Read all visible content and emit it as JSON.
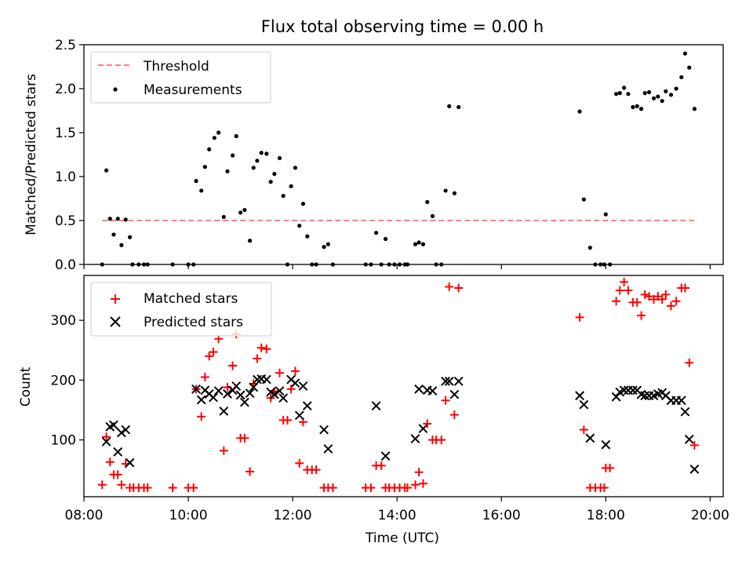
{
  "chart_data": [
    {
      "type": "scatter",
      "title": "Flux total observing time = 0.00 h",
      "ylabel": "Matched/Predicted stars",
      "xlabel": "",
      "xlim": [
        8.0,
        20.25
      ],
      "ylim": [
        0,
        2.5
      ],
      "yticks": [
        0.0,
        0.5,
        1.0,
        1.5,
        2.0,
        2.5
      ],
      "ytick_labels": [
        "0.0",
        "0.5",
        "1.0",
        "1.5",
        "2.0",
        "2.5"
      ],
      "grid": false,
      "legend_position": "top-left",
      "legend": [
        "Threshold",
        "Measurements"
      ],
      "threshold": {
        "name": "Threshold",
        "value": 0.5,
        "x_range": [
          8.35,
          19.7
        ],
        "color": "#ff7f7f",
        "style": "dashed"
      },
      "series": [
        {
          "name": "Measurements",
          "marker": "dot",
          "color": "#000000",
          "points": [
            [
              8.35,
              0.0
            ],
            [
              8.43,
              1.07
            ],
            [
              8.5,
              0.52
            ],
            [
              8.57,
              0.34
            ],
            [
              8.65,
              0.52
            ],
            [
              8.72,
              0.22
            ],
            [
              8.8,
              0.51
            ],
            [
              8.88,
              0.31
            ],
            [
              8.93,
              0.0
            ],
            [
              9.05,
              0.0
            ],
            [
              9.15,
              0.0
            ],
            [
              9.22,
              0.0
            ],
            [
              9.7,
              0.0
            ],
            [
              10.0,
              0.0
            ],
            [
              10.1,
              0.0
            ],
            [
              10.15,
              0.95
            ],
            [
              10.25,
              0.84
            ],
            [
              10.32,
              1.11
            ],
            [
              10.4,
              1.31
            ],
            [
              10.5,
              1.44
            ],
            [
              10.58,
              1.5
            ],
            [
              10.68,
              0.54
            ],
            [
              10.75,
              1.06
            ],
            [
              10.85,
              1.24
            ],
            [
              10.92,
              1.46
            ],
            [
              11.0,
              0.59
            ],
            [
              11.08,
              0.62
            ],
            [
              11.18,
              0.27
            ],
            [
              11.25,
              1.1
            ],
            [
              11.32,
              1.18
            ],
            [
              11.4,
              1.27
            ],
            [
              11.5,
              1.26
            ],
            [
              11.58,
              0.94
            ],
            [
              11.65,
              1.03
            ],
            [
              11.75,
              1.21
            ],
            [
              11.82,
              0.78
            ],
            [
              11.9,
              0.0
            ],
            [
              11.97,
              0.89
            ],
            [
              12.05,
              1.1
            ],
            [
              12.13,
              0.44
            ],
            [
              12.2,
              0.69
            ],
            [
              12.28,
              0.32
            ],
            [
              12.37,
              0.0
            ],
            [
              12.45,
              0.0
            ],
            [
              12.6,
              0.2
            ],
            [
              12.68,
              0.23
            ],
            [
              12.77,
              0.0
            ],
            [
              13.4,
              0.0
            ],
            [
              13.5,
              0.0
            ],
            [
              13.6,
              0.36
            ],
            [
              13.7,
              0.0
            ],
            [
              13.78,
              0.29
            ],
            [
              13.85,
              0.0
            ],
            [
              13.95,
              0.0
            ],
            [
              14.05,
              0.0
            ],
            [
              14.15,
              0.0
            ],
            [
              14.2,
              0.0
            ],
            [
              14.35,
              0.23
            ],
            [
              14.42,
              0.25
            ],
            [
              14.5,
              0.23
            ],
            [
              14.58,
              0.71
            ],
            [
              14.68,
              0.55
            ],
            [
              14.75,
              0.0
            ],
            [
              14.85,
              0.0
            ],
            [
              14.93,
              0.84
            ],
            [
              15.0,
              1.8
            ],
            [
              15.1,
              0.81
            ],
            [
              15.18,
              1.79
            ],
            [
              17.5,
              1.74
            ],
            [
              17.58,
              0.74
            ],
            [
              17.7,
              0.19
            ],
            [
              17.8,
              0.0
            ],
            [
              17.9,
              0.0
            ],
            [
              17.97,
              0.0
            ],
            [
              18.0,
              0.57
            ],
            [
              18.08,
              0.0
            ],
            [
              18.2,
              1.94
            ],
            [
              18.27,
              1.95
            ],
            [
              18.35,
              2.01
            ],
            [
              18.43,
              1.94
            ],
            [
              18.52,
              1.79
            ],
            [
              18.6,
              1.8
            ],
            [
              18.68,
              1.77
            ],
            [
              18.75,
              1.95
            ],
            [
              18.83,
              1.96
            ],
            [
              18.92,
              1.89
            ],
            [
              19.0,
              1.91
            ],
            [
              19.08,
              1.86
            ],
            [
              19.15,
              1.97
            ],
            [
              19.25,
              1.93
            ],
            [
              19.35,
              2.0
            ],
            [
              19.45,
              2.13
            ],
            [
              19.52,
              2.4
            ],
            [
              19.6,
              2.24
            ],
            [
              19.7,
              1.77
            ]
          ]
        }
      ]
    },
    {
      "type": "scatter",
      "title": "",
      "ylabel": "Count",
      "xlabel": "Time (UTC)",
      "xlim": [
        8.0,
        20.25
      ],
      "ylim": [
        5,
        375
      ],
      "xticks": [
        8,
        10,
        12,
        14,
        16,
        18,
        20
      ],
      "xtick_labels": [
        "08:00",
        "10:00",
        "12:00",
        "14:00",
        "16:00",
        "18:00",
        "20:00"
      ],
      "yticks": [
        100,
        200,
        300
      ],
      "ytick_labels": [
        "100",
        "200",
        "300"
      ],
      "grid": false,
      "legend_position": "top-left",
      "legend": [
        "Matched stars",
        "Predicted stars"
      ],
      "series": [
        {
          "name": "Matched stars",
          "marker": "plus",
          "color": "#ff0000",
          "points": [
            [
              8.35,
              25
            ],
            [
              8.43,
              105
            ],
            [
              8.5,
              63
            ],
            [
              8.57,
              42
            ],
            [
              8.65,
              42
            ],
            [
              8.72,
              25
            ],
            [
              8.8,
              60
            ],
            [
              8.88,
              20
            ],
            [
              8.95,
              20
            ],
            [
              9.05,
              20
            ],
            [
              9.15,
              20
            ],
            [
              9.22,
              20
            ],
            [
              9.7,
              20
            ],
            [
              10.0,
              20
            ],
            [
              10.1,
              20
            ],
            [
              10.15,
              185
            ],
            [
              10.25,
              139
            ],
            [
              10.32,
              205
            ],
            [
              10.4,
              240
            ],
            [
              10.48,
              247
            ],
            [
              10.58,
              269
            ],
            [
              10.68,
              82
            ],
            [
              10.75,
              188
            ],
            [
              10.85,
              224
            ],
            [
              10.92,
              277
            ],
            [
              11.0,
              103
            ],
            [
              11.08,
              103
            ],
            [
              11.18,
              47
            ],
            [
              11.25,
              194
            ],
            [
              11.32,
              236
            ],
            [
              11.4,
              254
            ],
            [
              11.5,
              252
            ],
            [
              11.58,
              170
            ],
            [
              11.65,
              181
            ],
            [
              11.75,
              212
            ],
            [
              11.82,
              133
            ],
            [
              11.9,
              133
            ],
            [
              11.97,
              185
            ],
            [
              12.05,
              215
            ],
            [
              12.13,
              61
            ],
            [
              12.2,
              130
            ],
            [
              12.28,
              50
            ],
            [
              12.37,
              50
            ],
            [
              12.45,
              50
            ],
            [
              12.6,
              20
            ],
            [
              12.68,
              20
            ],
            [
              12.77,
              20
            ],
            [
              13.4,
              20
            ],
            [
              13.5,
              20
            ],
            [
              13.6,
              57
            ],
            [
              13.7,
              57
            ],
            [
              13.78,
              20
            ],
            [
              13.85,
              20
            ],
            [
              13.95,
              20
            ],
            [
              14.05,
              20
            ],
            [
              14.15,
              20
            ],
            [
              14.2,
              20
            ],
            [
              14.35,
              25
            ],
            [
              14.42,
              46
            ],
            [
              14.5,
              27
            ],
            [
              14.58,
              127
            ],
            [
              14.68,
              100
            ],
            [
              14.75,
              100
            ],
            [
              14.85,
              100
            ],
            [
              14.93,
              166
            ],
            [
              15.0,
              356
            ],
            [
              15.1,
              142
            ],
            [
              15.18,
              354
            ],
            [
              17.5,
              305
            ],
            [
              17.58,
              117
            ],
            [
              17.7,
              20
            ],
            [
              17.8,
              20
            ],
            [
              17.9,
              20
            ],
            [
              17.97,
              20
            ],
            [
              18.0,
              53
            ],
            [
              18.08,
              53
            ],
            [
              18.2,
              332
            ],
            [
              18.27,
              350
            ],
            [
              18.35,
              364
            ],
            [
              18.43,
              350
            ],
            [
              18.52,
              330
            ],
            [
              18.6,
              330
            ],
            [
              18.68,
              308
            ],
            [
              18.75,
              343
            ],
            [
              18.83,
              340
            ],
            [
              18.92,
              335
            ],
            [
              19.0,
              340
            ],
            [
              19.08,
              335
            ],
            [
              19.15,
              343
            ],
            [
              19.25,
              324
            ],
            [
              19.35,
              332
            ],
            [
              19.45,
              354
            ],
            [
              19.52,
              354
            ],
            [
              19.6,
              229
            ],
            [
              19.7,
              91
            ]
          ]
        },
        {
          "name": "Predicted stars",
          "marker": "x",
          "color": "#000000",
          "points": [
            [
              8.43,
              97
            ],
            [
              8.5,
              122
            ],
            [
              8.57,
              125
            ],
            [
              8.65,
              80
            ],
            [
              8.72,
              112
            ],
            [
              8.8,
              117
            ],
            [
              8.88,
              62
            ],
            [
              10.15,
              185
            ],
            [
              10.25,
              167
            ],
            [
              10.32,
              183
            ],
            [
              10.4,
              177
            ],
            [
              10.48,
              171
            ],
            [
              10.58,
              182
            ],
            [
              10.68,
              148
            ],
            [
              10.75,
              177
            ],
            [
              10.85,
              183
            ],
            [
              10.92,
              190
            ],
            [
              11.0,
              175
            ],
            [
              11.08,
              163
            ],
            [
              11.18,
              178
            ],
            [
              11.25,
              188
            ],
            [
              11.32,
              201
            ],
            [
              11.4,
              202
            ],
            [
              11.5,
              201
            ],
            [
              11.58,
              180
            ],
            [
              11.65,
              176
            ],
            [
              11.75,
              182
            ],
            [
              11.82,
              170
            ],
            [
              11.97,
              201
            ],
            [
              12.05,
              195
            ],
            [
              12.13,
              141
            ],
            [
              12.2,
              190
            ],
            [
              12.28,
              157
            ],
            [
              12.6,
              117
            ],
            [
              12.68,
              85
            ],
            [
              13.6,
              157
            ],
            [
              13.78,
              73
            ],
            [
              14.35,
              102
            ],
            [
              14.42,
              185
            ],
            [
              14.5,
              119
            ],
            [
              14.58,
              183
            ],
            [
              14.68,
              182
            ],
            [
              14.93,
              198
            ],
            [
              15.0,
              198
            ],
            [
              15.1,
              176
            ],
            [
              15.18,
              198
            ],
            [
              17.5,
              174
            ],
            [
              17.58,
              159
            ],
            [
              17.7,
              103
            ],
            [
              18.0,
              92
            ],
            [
              18.2,
              172
            ],
            [
              18.27,
              180
            ],
            [
              18.35,
              183
            ],
            [
              18.43,
              183
            ],
            [
              18.52,
              183
            ],
            [
              18.6,
              183
            ],
            [
              18.68,
              176
            ],
            [
              18.75,
              174
            ],
            [
              18.83,
              174
            ],
            [
              18.92,
              174
            ],
            [
              19.0,
              177
            ],
            [
              19.08,
              179
            ],
            [
              19.15,
              174
            ],
            [
              19.25,
              166
            ],
            [
              19.35,
              166
            ],
            [
              19.45,
              166
            ],
            [
              19.52,
              147
            ],
            [
              19.6,
              101
            ],
            [
              19.7,
              51
            ]
          ]
        }
      ]
    }
  ]
}
